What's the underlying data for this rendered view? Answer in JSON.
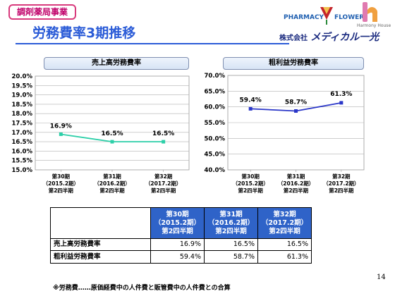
{
  "header": {
    "department": "調剤薬局事業",
    "title": "労務費率3期推移",
    "logo": {
      "pharmacy": "PHARMACY",
      "flower": "FLOWER",
      "harmony": "Harmony House",
      "company_prefix": "株式会社",
      "company_name": "メディカル一光"
    }
  },
  "chart_data": [
    {
      "type": "line",
      "title": "売上高労務費率",
      "categories": [
        "第30期\n（2015.2期）\n第2四半期",
        "第31期\n（2016.2期）\n第2四半期",
        "第32期\n（2017.2期）\n第2四半期"
      ],
      "series": [
        {
          "values": [
            16.9,
            16.5,
            16.5
          ]
        }
      ],
      "data_labels": [
        "16.9%",
        "16.5%",
        "16.5%"
      ],
      "ylim": [
        15.0,
        20.0
      ],
      "ytick_step": 0.5,
      "ytick_labels": [
        "15.0%",
        "15.5%",
        "16.0%",
        "16.5%",
        "17.0%",
        "17.5%",
        "18.0%",
        "18.5%",
        "19.0%",
        "19.5%",
        "20.0%"
      ],
      "grid": true,
      "line_color": "#2ccfa8"
    },
    {
      "type": "line",
      "title": "粗利益労務費率",
      "categories": [
        "第30期\n（2015.2期）\n第2四半期",
        "第31期\n（2016.2期）\n第2四半期",
        "第32期\n（2017.2期）\n第2四半期"
      ],
      "series": [
        {
          "values": [
            59.4,
            58.7,
            61.3
          ]
        }
      ],
      "data_labels": [
        "59.4%",
        "58.7%",
        "61.3%"
      ],
      "ylim": [
        40.0,
        70.0
      ],
      "ytick_step": 5.0,
      "ytick_labels": [
        "40.0%",
        "45.0%",
        "50.0%",
        "55.0%",
        "60.0%",
        "65.0%",
        "70.0%"
      ],
      "grid": true,
      "line_color": "#2a36c8"
    }
  ],
  "table": {
    "columns": [
      "第30期\n（2015.2期）\n第2四半期",
      "第31期\n（2016.2期）\n第2四半期",
      "第32期\n（2017.2期）\n第2四半期"
    ],
    "rows": [
      {
        "label": "売上高労務費率",
        "values": [
          "16.9%",
          "16.5%",
          "16.5%"
        ]
      },
      {
        "label": "粗利益労務費率",
        "values": [
          "59.4%",
          "58.7%",
          "61.3%"
        ]
      }
    ]
  },
  "footnote": "※労務費……原価経費中の人件費と販管費中の人件費との合算",
  "page_number": "14"
}
